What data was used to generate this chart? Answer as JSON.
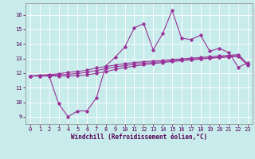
{
  "xlabel": "Windchill (Refroidissement éolien,°C)",
  "xlim": [
    -0.5,
    23.5
  ],
  "ylim": [
    8.5,
    16.8
  ],
  "yticks": [
    9,
    10,
    11,
    12,
    13,
    14,
    15,
    16
  ],
  "xticks": [
    0,
    1,
    2,
    3,
    4,
    5,
    6,
    7,
    8,
    9,
    10,
    11,
    12,
    13,
    14,
    15,
    16,
    17,
    18,
    19,
    20,
    21,
    22,
    23
  ],
  "bg_color": "#c8ecec",
  "grid_color": "#ffffff",
  "line_color": "#993399",
  "series1": [
    11.8,
    11.8,
    11.8,
    9.9,
    9.0,
    9.4,
    9.4,
    10.3,
    12.5,
    13.1,
    13.8,
    15.1,
    15.4,
    13.6,
    14.7,
    16.3,
    14.4,
    14.3,
    14.6,
    13.5,
    13.7,
    13.4,
    12.4,
    12.7
  ],
  "series2": [
    11.8,
    11.85,
    11.9,
    11.95,
    12.05,
    12.1,
    12.2,
    12.35,
    12.45,
    12.55,
    12.65,
    12.72,
    12.78,
    12.83,
    12.88,
    12.93,
    12.97,
    13.02,
    13.07,
    13.12,
    13.17,
    13.22,
    13.27,
    12.62
  ],
  "series3": [
    11.8,
    11.82,
    11.85,
    11.88,
    11.92,
    11.97,
    12.05,
    12.18,
    12.3,
    12.42,
    12.52,
    12.6,
    12.67,
    12.73,
    12.79,
    12.85,
    12.9,
    12.95,
    13.0,
    13.05,
    13.1,
    13.15,
    13.2,
    12.6
  ],
  "series4": [
    11.8,
    11.8,
    11.8,
    11.8,
    11.8,
    11.82,
    11.88,
    11.98,
    12.1,
    12.25,
    12.38,
    12.48,
    12.57,
    12.65,
    12.72,
    12.79,
    12.85,
    12.91,
    12.96,
    13.01,
    13.06,
    13.1,
    13.15,
    12.55
  ]
}
